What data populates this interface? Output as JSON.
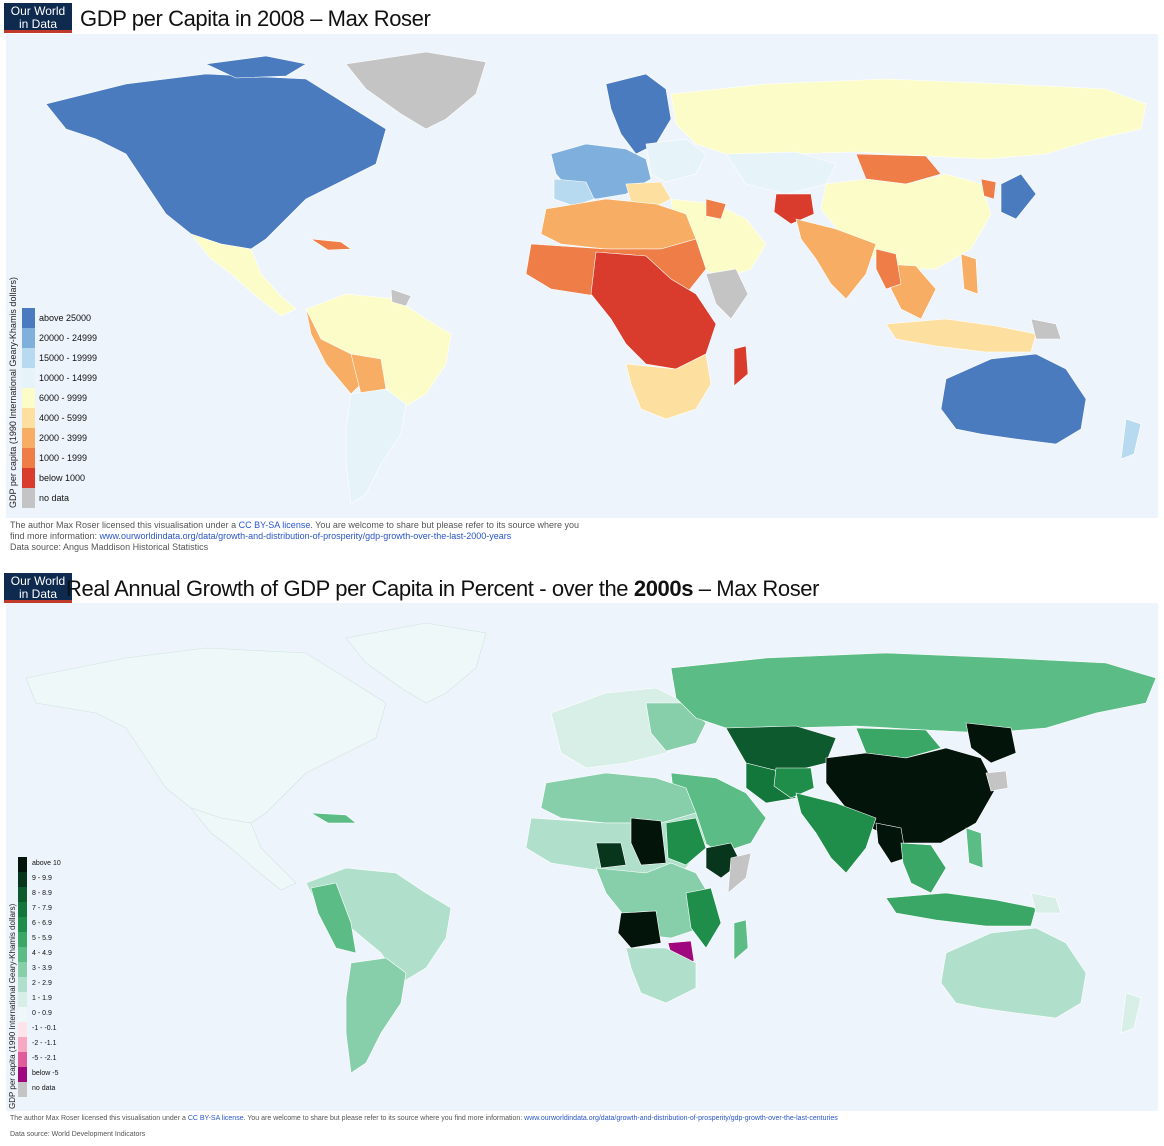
{
  "top": {
    "logo": {
      "line1": "Our World",
      "line2": "in Data"
    },
    "title": "GDP per Capita in 2008 – Max Roser",
    "legend_title": "GDP per capita (1990 International Geary-Khamis dollars)",
    "legend": [
      {
        "label": "above 25000",
        "color": "#4a7bbf"
      },
      {
        "label": "20000 - 24999",
        "color": "#7fb0dd"
      },
      {
        "label": "15000 - 19999",
        "color": "#b8daf0"
      },
      {
        "label": "10000 - 14999",
        "color": "#e6f3f8"
      },
      {
        "label": "6000 - 9999",
        "color": "#fcfcc8"
      },
      {
        "label": "4000 - 5999",
        "color": "#fde0a0"
      },
      {
        "label": "2000 - 3999",
        "color": "#f7ad63"
      },
      {
        "label": "1000 - 1999",
        "color": "#ee7d47"
      },
      {
        "label": "below 1000",
        "color": "#d93b2d"
      },
      {
        "label": "no data",
        "color": "#c4c4c4"
      }
    ],
    "credit_line1_a": "The author Max Roser licensed this visualisation under a ",
    "credit_line1_link": "CC BY-SA license",
    "credit_line1_b": ". You are welcome to share but please refer to its source where you",
    "credit_line2_a": "find more information: ",
    "credit_line2_link": "www.ourworldindata.org/data/growth-and-distribution-of-prosperity/gdp-growth-over-the-last-2000-years",
    "credit_line3": "Data source: Angus Maddison Historical Statistics"
  },
  "bottom": {
    "logo": {
      "line1": "Our World",
      "line2": "in Data"
    },
    "title_a": "Real Annual Growth of GDP per Capita in Percent - over the ",
    "title_b": "2000s",
    "title_c": " – Max Roser",
    "legend_title": "GDP per capita (1990 International Geary-Khamis dollars)",
    "legend": [
      {
        "label": "above 10",
        "color": "#03140b"
      },
      {
        "label": "9 - 9.9",
        "color": "#08361d"
      },
      {
        "label": "8 - 8.9",
        "color": "#0d5a2f"
      },
      {
        "label": "7 - 7.9",
        "color": "#13773c"
      },
      {
        "label": "6 - 6.9",
        "color": "#1f8e4b"
      },
      {
        "label": "5 - 5.9",
        "color": "#3aa766"
      },
      {
        "label": "4 - 4.9",
        "color": "#5bbc86"
      },
      {
        "label": "3 - 3.9",
        "color": "#86cfaa"
      },
      {
        "label": "2 - 2.9",
        "color": "#b0e0cb"
      },
      {
        "label": "1 - 1.9",
        "color": "#d7efe6"
      },
      {
        "label": "0 - 0.9",
        "color": "#eef8f8"
      },
      {
        "label": "-1 - -0.1",
        "color": "#fde3ea"
      },
      {
        "label": "-2 - -1.1",
        "color": "#f7a8c3"
      },
      {
        "label": "-5 - -2.1",
        "color": "#e15c9a"
      },
      {
        "label": "below -5",
        "color": "#a0077e"
      },
      {
        "label": "no data",
        "color": "#c4c4c4"
      }
    ],
    "credit_line1_a": "The author Max Roser licensed this visualisation under a ",
    "credit_line1_link": "CC BY-SA license",
    "credit_line1_b": ". You are welcome to share but please refer to its source where you find more information: ",
    "credit_line1_link2": "www.ourworldindata.org/data/growth-and-distribution-of-prosperity/gdp-growth-over-the-last-centuries",
    "credit_line2": "Data source: World Development Indicators"
  },
  "colors": {
    "ocean": "#eef4fb",
    "logo_bg": "#0e2a4f",
    "logo_accent": "#c0392b",
    "link": "#2a55c9"
  }
}
